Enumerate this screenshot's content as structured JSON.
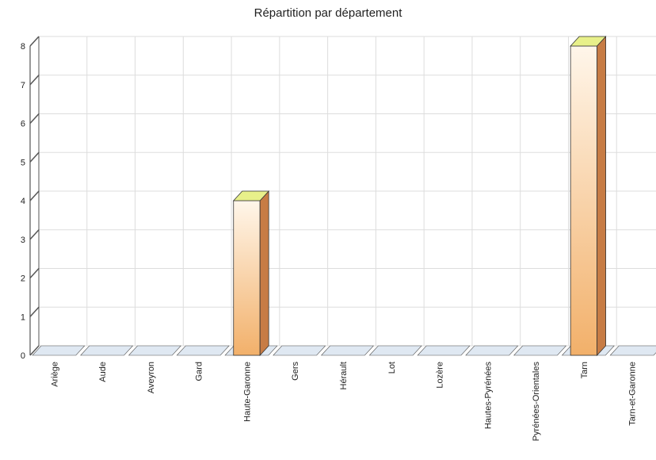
{
  "chart_data": {
    "type": "bar",
    "title": "Répartition par département",
    "categories": [
      "Ariège",
      "Aude",
      "Aveyron",
      "Gard",
      "Haute-Garonne",
      "Gers",
      "Hérault",
      "Lot",
      "Lozère",
      "Hautes-Pyrénées",
      "Pyrénées-Orientales",
      "Tarn",
      "Tarn-et-Garonne"
    ],
    "values": [
      0,
      0,
      0,
      0,
      4,
      0,
      0,
      0,
      0,
      0,
      0,
      8,
      0
    ],
    "ylim": [
      0,
      8
    ],
    "yticks": [
      "0",
      "1",
      "2",
      "3",
      "4",
      "5",
      "6",
      "7",
      "8"
    ],
    "xlabel": "",
    "ylabel": "",
    "grid": true,
    "style": "3d",
    "colors": {
      "bar_top": "#e8f08a",
      "bar_light": "#fff6ea",
      "bar_dark": "#f2b06a",
      "bar_side": "#c77c45",
      "floor": "#dfe8f2",
      "grid": "#dddddd",
      "axis": "#555555"
    }
  }
}
